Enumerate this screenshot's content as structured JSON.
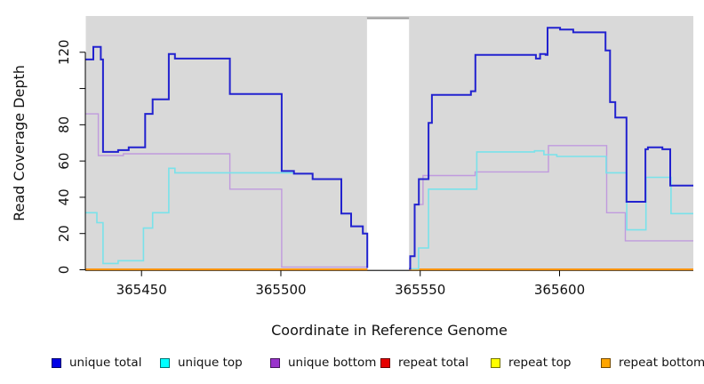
{
  "chart_data": {
    "type": "line",
    "subtype": "step-coverage",
    "title": "",
    "xlabel": "Coordinate in Reference Genome",
    "ylabel": "Read Coverage Depth",
    "xlim": [
      365430,
      365648
    ],
    "ylim": [
      0,
      140
    ],
    "x_ticks": [
      365450,
      365500,
      365550,
      365600
    ],
    "x_tick_labels": [
      "365450",
      "365500",
      "365550",
      "365600"
    ],
    "y_ticks": [
      0,
      20,
      40,
      60,
      80,
      100,
      120
    ],
    "y_tick_labels": [
      "0",
      "20",
      "40",
      "60",
      "80",
      "",
      "120"
    ],
    "grid": false,
    "legend_position": "bottom",
    "plot_bg": "#d9d9d9",
    "axis_color": "#000000",
    "gap": {
      "x0": 365530.9,
      "x1": 365546,
      "fill": "#ffffff",
      "border": "#999999"
    },
    "series": [
      {
        "name": "repeat top",
        "color": "#ffff00",
        "width": 1.4,
        "segments": [
          [
            [
              365430,
              0.2
            ],
            [
              365531,
              0.2
            ]
          ],
          [
            [
              365546,
              0.2
            ],
            [
              365648,
              0.2
            ]
          ]
        ]
      },
      {
        "name": "repeat total",
        "color": "#e60000",
        "width": 1.4,
        "segments": [
          [
            [
              365430,
              0.2
            ],
            [
              365531,
              0.2
            ]
          ],
          [
            [
              365546,
              0.2
            ],
            [
              365648,
              0.2
            ]
          ]
        ]
      },
      {
        "name": "repeat bottom",
        "color": "#ff9200",
        "width": 2,
        "segments": [
          [
            [
              365430,
              0.2
            ],
            [
              365531,
              0.2
            ]
          ],
          [
            [
              365546,
              0.2
            ],
            [
              365648,
              0.2
            ]
          ]
        ]
      },
      {
        "name": "unique bottom",
        "color": "#c09ade",
        "width": 1.4,
        "segments": [
          [
            [
              365430,
              86
            ],
            [
              365434.5,
              63
            ],
            [
              365443.5,
              64
            ],
            [
              365481.7,
              44.5
            ],
            [
              365500.3,
              1.5
            ],
            [
              365531,
              1.5
            ]
          ],
          [
            [
              365546,
              0.5
            ],
            [
              365546.4,
              7.5
            ],
            [
              365548,
              36
            ],
            [
              365551,
              52
            ],
            [
              365569.7,
              54
            ],
            [
              365596,
              68.5
            ],
            [
              365616.9,
              31.5
            ],
            [
              365623.6,
              16
            ],
            [
              365648,
              16
            ]
          ]
        ]
      },
      {
        "name": "unique top",
        "color": "#79e2ea",
        "width": 1.6,
        "segments": [
          [
            [
              365430,
              31.5
            ],
            [
              365434,
              26
            ],
            [
              365436.2,
              3.5
            ],
            [
              365441.6,
              5
            ],
            [
              365450.7,
              23
            ],
            [
              365454,
              31.5
            ],
            [
              365459.8,
              56
            ],
            [
              365462,
              53.5
            ],
            [
              365504.7,
              53
            ],
            [
              365511.4,
              50
            ],
            [
              365521.7,
              31
            ],
            [
              365525.2,
              24
            ],
            [
              365529.4,
              20
            ],
            [
              365531,
              1
            ]
          ],
          [
            [
              365546,
              0.5
            ],
            [
              365549.4,
              12
            ],
            [
              365553,
              44.5
            ],
            [
              365570.3,
              65
            ],
            [
              365591,
              65.6
            ],
            [
              365594.4,
              63.5
            ],
            [
              365599,
              62.5
            ],
            [
              365616.7,
              53.5
            ],
            [
              365624.1,
              22
            ],
            [
              365631,
              51
            ],
            [
              365640,
              31
            ],
            [
              365648,
              31
            ]
          ]
        ]
      },
      {
        "name": "unique total",
        "color": "#2222cf",
        "width": 2,
        "segments": [
          [
            [
              365430,
              116
            ],
            [
              365432.7,
              123
            ],
            [
              365435.4,
              116
            ],
            [
              365436.2,
              65
            ],
            [
              365441.6,
              66
            ],
            [
              365445.4,
              67.5
            ],
            [
              365451.3,
              86
            ],
            [
              365454,
              94
            ],
            [
              365459.8,
              119
            ],
            [
              365462,
              116.5
            ],
            [
              365481.7,
              97
            ],
            [
              365500.3,
              54.5
            ],
            [
              365504.7,
              53
            ],
            [
              365511.4,
              50
            ],
            [
              365521.7,
              31
            ],
            [
              365525.2,
              24
            ],
            [
              365529.4,
              20
            ],
            [
              365531,
              1
            ]
          ],
          [
            [
              365546,
              0.5
            ],
            [
              365546.4,
              7.5
            ],
            [
              365548,
              36
            ],
            [
              365549.5,
              50
            ],
            [
              365553,
              81
            ],
            [
              365554.2,
              96.5
            ],
            [
              365568.2,
              98.5
            ],
            [
              365569.8,
              118.5
            ],
            [
              365591.5,
              116.5
            ],
            [
              365593,
              119
            ],
            [
              365595,
              118.5
            ],
            [
              365595.7,
              133.5
            ],
            [
              365600.2,
              132.5
            ],
            [
              365604.9,
              131
            ],
            [
              365616.5,
              121
            ],
            [
              365618.1,
              92.5
            ],
            [
              365620,
              84
            ],
            [
              365624,
              37.5
            ],
            [
              365630.8,
              66.5
            ],
            [
              365631.7,
              67.5
            ],
            [
              365636.9,
              66.5
            ],
            [
              365639.7,
              46.5
            ],
            [
              365648,
              46.5
            ]
          ]
        ]
      }
    ]
  },
  "legend": {
    "items": [
      {
        "label": "unique total",
        "color": "#0000e6"
      },
      {
        "label": "unique top",
        "color": "#00ffff"
      },
      {
        "label": "unique bottom",
        "color": "#9933cc"
      },
      {
        "label": "repeat total",
        "color": "#e60000"
      },
      {
        "label": "repeat top",
        "color": "#ffff00"
      },
      {
        "label": "repeat bottom",
        "color": "#ffa500"
      }
    ]
  }
}
